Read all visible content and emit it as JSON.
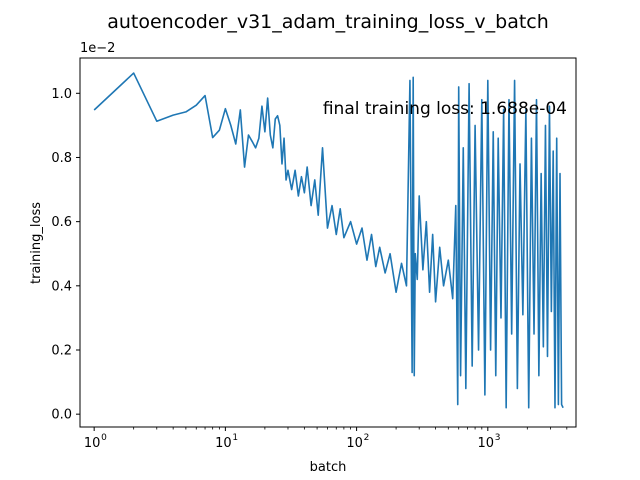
{
  "chart_data": {
    "type": "line",
    "title": "autoencoder_v31_adam_training_loss_v_batch",
    "xlabel": "batch",
    "ylabel": "training_loss",
    "x_scale": "log",
    "xlim": [
      0.78,
      4700
    ],
    "ylim": [
      -0.0004,
      0.0111
    ],
    "y_multiplier_label": "1e−2",
    "x_ticks": [
      {
        "value": 1,
        "base": "10",
        "exp": "0"
      },
      {
        "value": 10,
        "base": "10",
        "exp": "1"
      },
      {
        "value": 100,
        "base": "10",
        "exp": "2"
      },
      {
        "value": 1000,
        "base": "10",
        "exp": "3"
      }
    ],
    "y_ticks": [
      {
        "value": 0.0,
        "label": "0.0"
      },
      {
        "value": 0.002,
        "label": "0.2"
      },
      {
        "value": 0.004,
        "label": "0.4"
      },
      {
        "value": 0.006,
        "label": "0.6"
      },
      {
        "value": 0.008,
        "label": "0.8"
      },
      {
        "value": 0.01,
        "label": "1.0"
      }
    ],
    "annotation": "final training loss: 1.688e-04",
    "grid": false,
    "line_color": "#1f77b4",
    "series": [
      {
        "x": [
          1,
          2,
          3,
          4,
          5,
          6,
          7,
          8,
          9,
          10,
          11,
          12,
          13,
          14,
          15,
          16,
          17,
          18,
          19,
          20,
          21,
          22,
          23,
          24,
          25,
          26,
          27,
          28,
          29,
          30,
          32,
          34,
          36,
          38,
          40,
          42,
          45,
          48,
          51,
          55,
          60,
          65,
          70,
          75,
          80,
          90,
          100,
          110,
          120,
          130,
          140,
          150,
          165,
          180,
          200,
          220,
          240,
          255,
          265,
          270,
          275,
          280,
          290,
          300,
          320,
          340,
          360,
          380,
          400,
          430,
          460,
          500,
          540,
          570,
          590,
          600,
          620,
          650,
          680,
          720,
          760,
          800,
          850,
          900,
          950,
          1000,
          1050,
          1100,
          1150,
          1200,
          1260,
          1320,
          1380,
          1450,
          1520,
          1600,
          1680,
          1760,
          1850,
          1950,
          2050,
          2150,
          2250,
          2350,
          2450,
          2550,
          2650,
          2750,
          2850,
          2950,
          3050,
          3150,
          3250,
          3350,
          3450,
          3550,
          3650,
          3750
        ],
        "y": [
          0.00948,
          0.01063,
          0.00913,
          0.00932,
          0.00942,
          0.00963,
          0.00993,
          0.00862,
          0.00885,
          0.00952,
          0.009,
          0.00842,
          0.00948,
          0.0077,
          0.0087,
          0.0085,
          0.0083,
          0.0086,
          0.0096,
          0.0088,
          0.00985,
          0.0087,
          0.0083,
          0.0092,
          0.0093,
          0.009,
          0.0078,
          0.0086,
          0.0073,
          0.0076,
          0.007,
          0.0076,
          0.0068,
          0.0074,
          0.0069,
          0.0077,
          0.0065,
          0.0073,
          0.0062,
          0.0083,
          0.0058,
          0.0065,
          0.0056,
          0.0064,
          0.0055,
          0.006,
          0.0053,
          0.0058,
          0.0048,
          0.0056,
          0.0046,
          0.0052,
          0.0044,
          0.005,
          0.0038,
          0.0047,
          0.004,
          0.0104,
          0.0013,
          0.0105,
          0.0012,
          0.005,
          0.0042,
          0.0068,
          0.0045,
          0.006,
          0.0038,
          0.0056,
          0.0035,
          0.0052,
          0.004,
          0.0048,
          0.0036,
          0.0065,
          0.0003,
          0.0102,
          0.0012,
          0.0083,
          0.0008,
          0.0103,
          0.0015,
          0.009,
          0.002,
          0.0098,
          0.0006,
          0.0104,
          0.002,
          0.0088,
          0.0012,
          0.0086,
          0.003,
          0.0095,
          0.0002,
          0.0098,
          0.0025,
          0.0104,
          0.0008,
          0.0078,
          0.0031,
          0.0095,
          0.0002,
          0.0086,
          0.0025,
          0.0098,
          0.0012,
          0.0075,
          0.0021,
          0.009,
          0.0018,
          0.0096,
          0.0032,
          0.0082,
          0.0002,
          0.0086,
          0.0003,
          0.0075,
          0.0003,
          0.0002
        ]
      }
    ]
  }
}
